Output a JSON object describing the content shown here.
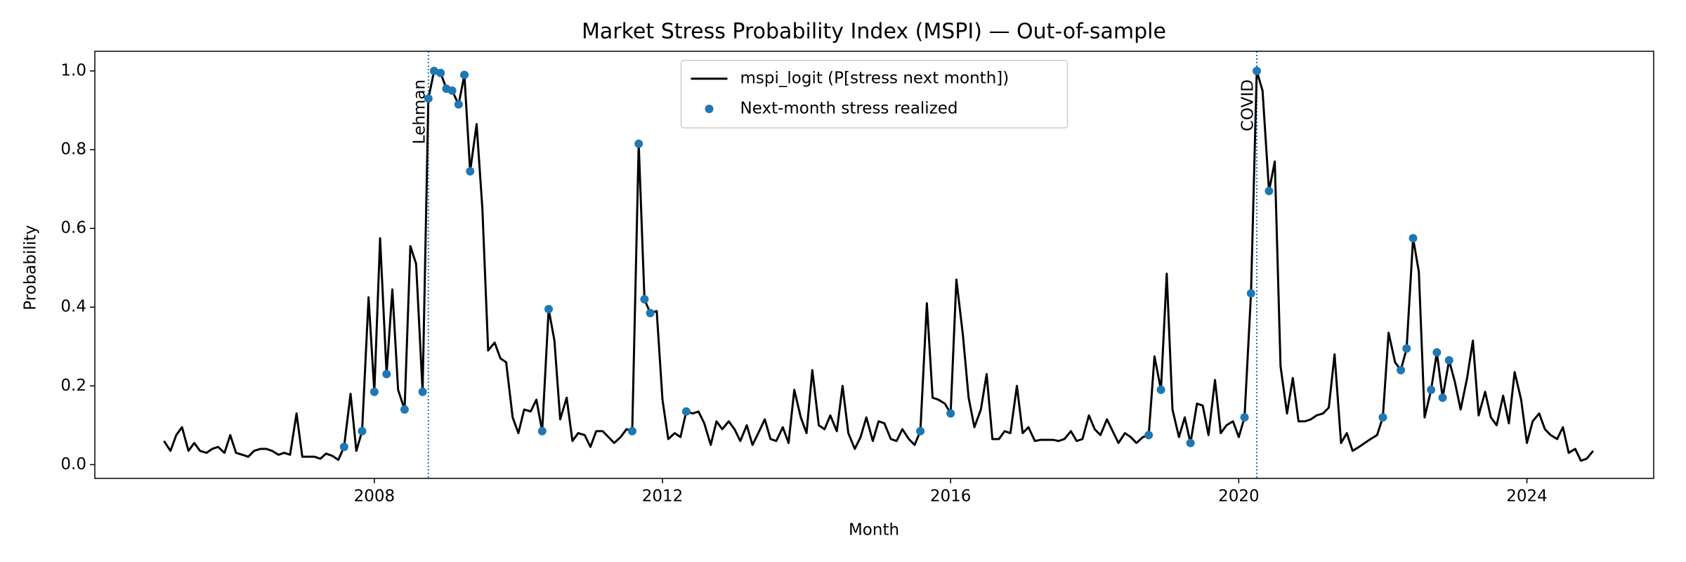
{
  "chart_data": {
    "type": "line",
    "title": "Market Stress Probability Index (MSPI) — Out-of-sample",
    "x_label": "Month",
    "y_label": "Probability",
    "xlim": [
      2004.12,
      2025.76
    ],
    "ylim": [
      -0.035,
      1.05
    ],
    "xticks": [
      2008,
      2012,
      2016,
      2020,
      2024
    ],
    "yticks": [
      {
        "value": 0,
        "label": "0.0"
      },
      {
        "value": 0.2,
        "label": "0.2"
      },
      {
        "value": 0.4,
        "label": "0.4"
      },
      {
        "value": 0.6,
        "label": "0.6"
      },
      {
        "value": 0.8,
        "label": "0.8"
      },
      {
        "value": 1,
        "label": "1.0"
      }
    ],
    "legend": "upper center",
    "annotations": [
      {
        "x": 2008.75,
        "label": "Lehman"
      },
      {
        "x": 2020.25,
        "label": "COVID"
      }
    ],
    "annotation_color": "#1f77b4",
    "series": [
      {
        "name": "mspi_logit (P[stress next month])",
        "color": "#000000",
        "x": [
          2005.08,
          2005.17,
          2005.25,
          2005.33,
          2005.42,
          2005.5,
          2005.58,
          2005.67,
          2005.75,
          2005.83,
          2005.92,
          2006,
          2006.08,
          2006.17,
          2006.25,
          2006.33,
          2006.42,
          2006.5,
          2006.58,
          2006.67,
          2006.75,
          2006.83,
          2006.92,
          2007,
          2007.08,
          2007.17,
          2007.25,
          2007.33,
          2007.42,
          2007.5,
          2007.58,
          2007.67,
          2007.75,
          2007.83,
          2007.92,
          2008,
          2008.08,
          2008.17,
          2008.25,
          2008.33,
          2008.42,
          2008.5,
          2008.58,
          2008.67,
          2008.75,
          2008.83,
          2008.92,
          2009,
          2009.08,
          2009.17,
          2009.25,
          2009.33,
          2009.42,
          2009.5,
          2009.58,
          2009.67,
          2009.75,
          2009.83,
          2009.92,
          2010,
          2010.08,
          2010.17,
          2010.25,
          2010.33,
          2010.42,
          2010.5,
          2010.58,
          2010.67,
          2010.75,
          2010.83,
          2010.92,
          2011,
          2011.08,
          2011.17,
          2011.25,
          2011.33,
          2011.42,
          2011.5,
          2011.58,
          2011.67,
          2011.75,
          2011.83,
          2011.92,
          2012,
          2012.08,
          2012.17,
          2012.25,
          2012.33,
          2012.42,
          2012.5,
          2012.58,
          2012.67,
          2012.75,
          2012.83,
          2012.92,
          2013,
          2013.08,
          2013.17,
          2013.25,
          2013.33,
          2013.42,
          2013.5,
          2013.58,
          2013.67,
          2013.75,
          2013.83,
          2013.92,
          2014,
          2014.08,
          2014.17,
          2014.25,
          2014.33,
          2014.42,
          2014.5,
          2014.58,
          2014.67,
          2014.75,
          2014.83,
          2014.92,
          2015,
          2015.08,
          2015.17,
          2015.25,
          2015.33,
          2015.42,
          2015.5,
          2015.58,
          2015.67,
          2015.75,
          2015.83,
          2015.92,
          2016,
          2016.08,
          2016.17,
          2016.25,
          2016.33,
          2016.42,
          2016.5,
          2016.58,
          2016.67,
          2016.75,
          2016.83,
          2016.92,
          2017,
          2017.08,
          2017.17,
          2017.25,
          2017.33,
          2017.42,
          2017.5,
          2017.58,
          2017.67,
          2017.75,
          2017.83,
          2017.92,
          2018,
          2018.08,
          2018.17,
          2018.25,
          2018.33,
          2018.42,
          2018.5,
          2018.58,
          2018.67,
          2018.75,
          2018.83,
          2018.92,
          2019,
          2019.08,
          2019.17,
          2019.25,
          2019.33,
          2019.42,
          2019.5,
          2019.58,
          2019.67,
          2019.75,
          2019.83,
          2019.92,
          2020,
          2020.08,
          2020.17,
          2020.25,
          2020.33,
          2020.42,
          2020.5,
          2020.58,
          2020.67,
          2020.75,
          2020.83,
          2020.92,
          2021,
          2021.08,
          2021.17,
          2021.25,
          2021.33,
          2021.42,
          2021.5,
          2021.58,
          2021.67,
          2021.75,
          2021.83,
          2021.92,
          2022,
          2022.08,
          2022.17,
          2022.25,
          2022.33,
          2022.42,
          2022.5,
          2022.58,
          2022.67,
          2022.75,
          2022.83,
          2022.92,
          2023,
          2023.08,
          2023.17,
          2023.25,
          2023.33,
          2023.42,
          2023.5,
          2023.58,
          2023.67,
          2023.75,
          2023.83,
          2023.92,
          2024,
          2024.08,
          2024.17,
          2024.25,
          2024.33,
          2024.42,
          2024.5,
          2024.58,
          2024.67,
          2024.75,
          2024.83,
          2024.92
        ],
        "values": [
          0.06,
          0.035,
          0.075,
          0.095,
          0.035,
          0.055,
          0.035,
          0.03,
          0.04,
          0.045,
          0.03,
          0.075,
          0.03,
          0.025,
          0.02,
          0.035,
          0.04,
          0.04,
          0.035,
          0.025,
          0.03,
          0.025,
          0.13,
          0.02,
          0.02,
          0.02,
          0.015,
          0.028,
          0.022,
          0.012,
          0.045,
          0.18,
          0.035,
          0.085,
          0.425,
          0.185,
          0.575,
          0.23,
          0.445,
          0.19,
          0.14,
          0.555,
          0.51,
          0.185,
          0.93,
          1.0,
          0.995,
          0.955,
          0.95,
          0.915,
          0.99,
          0.745,
          0.865,
          0.65,
          0.29,
          0.31,
          0.27,
          0.26,
          0.12,
          0.08,
          0.14,
          0.135,
          0.165,
          0.085,
          0.395,
          0.315,
          0.115,
          0.17,
          0.06,
          0.08,
          0.075,
          0.045,
          0.085,
          0.085,
          0.07,
          0.055,
          0.07,
          0.09,
          0.085,
          0.815,
          0.42,
          0.385,
          0.39,
          0.165,
          0.065,
          0.08,
          0.07,
          0.135,
          0.13,
          0.135,
          0.105,
          0.05,
          0.11,
          0.09,
          0.11,
          0.09,
          0.06,
          0.1,
          0.05,
          0.08,
          0.115,
          0.065,
          0.06,
          0.095,
          0.055,
          0.19,
          0.12,
          0.08,
          0.24,
          0.1,
          0.09,
          0.125,
          0.085,
          0.2,
          0.08,
          0.04,
          0.07,
          0.12,
          0.06,
          0.11,
          0.105,
          0.065,
          0.06,
          0.09,
          0.065,
          0.05,
          0.085,
          0.41,
          0.17,
          0.165,
          0.155,
          0.13,
          0.47,
          0.33,
          0.17,
          0.095,
          0.14,
          0.23,
          0.065,
          0.065,
          0.085,
          0.08,
          0.2,
          0.08,
          0.095,
          0.06,
          0.063,
          0.063,
          0.063,
          0.06,
          0.065,
          0.085,
          0.06,
          0.065,
          0.125,
          0.09,
          0.075,
          0.115,
          0.085,
          0.055,
          0.08,
          0.07,
          0.055,
          0.07,
          0.075,
          0.275,
          0.19,
          0.485,
          0.14,
          0.07,
          0.12,
          0.055,
          0.155,
          0.15,
          0.075,
          0.215,
          0.08,
          0.1,
          0.11,
          0.07,
          0.12,
          0.435,
          1.0,
          0.95,
          0.695,
          0.77,
          0.25,
          0.13,
          0.22,
          0.11,
          0.11,
          0.115,
          0.125,
          0.13,
          0.145,
          0.28,
          0.055,
          0.08,
          0.035,
          0.045,
          0.055,
          0.065,
          0.075,
          0.12,
          0.335,
          0.26,
          0.24,
          0.295,
          0.575,
          0.49,
          0.12,
          0.19,
          0.285,
          0.17,
          0.265,
          0.21,
          0.14,
          0.22,
          0.315,
          0.125,
          0.185,
          0.12,
          0.1,
          0.175,
          0.105,
          0.235,
          0.165,
          0.055,
          0.11,
          0.13,
          0.09,
          0.075,
          0.065,
          0.095,
          0.03,
          0.04,
          0.01,
          0.015,
          0.035
        ]
      },
      {
        "name": "Next-month stress realized",
        "color": "#1f77b4",
        "type": "scatter",
        "x": [
          2007.58,
          2007.83,
          2008,
          2008.17,
          2008.42,
          2008.67,
          2008.75,
          2008.83,
          2008.92,
          2009,
          2009.08,
          2009.17,
          2009.25,
          2009.33,
          2010.33,
          2010.42,
          2011.58,
          2011.67,
          2011.75,
          2011.83,
          2012.33,
          2015.58,
          2016,
          2018.75,
          2018.92,
          2019.33,
          2020.08,
          2020.17,
          2020.25,
          2020.42,
          2022,
          2022.25,
          2022.33,
          2022.42,
          2022.67,
          2022.75,
          2022.83,
          2022.92
        ],
        "values": [
          0.045,
          0.085,
          0.185,
          0.23,
          0.14,
          0.185,
          0.93,
          1.0,
          0.995,
          0.955,
          0.95,
          0.915,
          0.99,
          0.745,
          0.085,
          0.395,
          0.085,
          0.815,
          0.42,
          0.385,
          0.135,
          0.085,
          0.13,
          0.075,
          0.19,
          0.055,
          0.12,
          0.435,
          1.0,
          0.695,
          0.12,
          0.24,
          0.295,
          0.575,
          0.19,
          0.285,
          0.17,
          0.265
        ]
      }
    ]
  }
}
